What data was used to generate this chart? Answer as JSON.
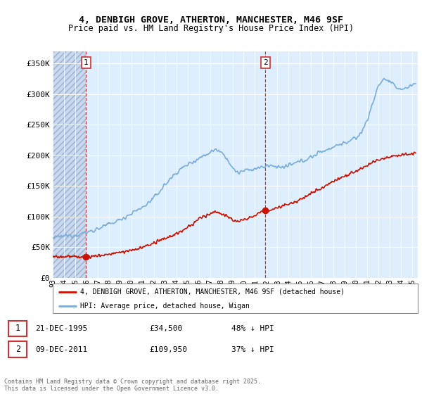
{
  "title1": "4, DENBIGH GROVE, ATHERTON, MANCHESTER, M46 9SF",
  "title2": "Price paid vs. HM Land Registry's House Price Index (HPI)",
  "ylabel_ticks": [
    "£0",
    "£50K",
    "£100K",
    "£150K",
    "£200K",
    "£250K",
    "£300K",
    "£350K"
  ],
  "ytick_values": [
    0,
    50000,
    100000,
    150000,
    200000,
    250000,
    300000,
    350000
  ],
  "ylim": [
    0,
    370000
  ],
  "xlim_start": 1993.0,
  "xlim_end": 2025.5,
  "hpi_color": "#7aaddb",
  "price_color": "#cc1100",
  "marker1_x": 1995.97,
  "marker1_y": 34500,
  "marker2_x": 2011.94,
  "marker2_y": 109950,
  "legend_line1": "4, DENBIGH GROVE, ATHERTON, MANCHESTER, M46 9SF (detached house)",
  "legend_line2": "HPI: Average price, detached house, Wigan",
  "table_row1": [
    "1",
    "21-DEC-1995",
    "£34,500",
    "48% ↓ HPI"
  ],
  "table_row2": [
    "2",
    "09-DEC-2011",
    "£109,950",
    "37% ↓ HPI"
  ],
  "footnote": "Contains HM Land Registry data © Crown copyright and database right 2025.\nThis data is licensed under the Open Government Licence v3.0.",
  "plot_bg": "#ddeeff",
  "grid_color": "#ffffff",
  "hatch_bg": "#c8d8ee"
}
